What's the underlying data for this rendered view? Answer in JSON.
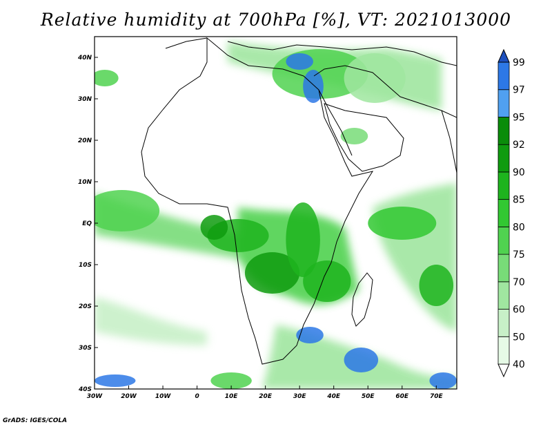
{
  "title": "Relative humidity at 700hPa [%], VT: 2021013000",
  "credit": "GrADS: IGES/COLA",
  "map": {
    "lon_range": [
      -30,
      76
    ],
    "lat_range": [
      -40,
      45
    ],
    "lon_ticks": [
      {
        "value": -30,
        "label": "30W"
      },
      {
        "value": -20,
        "label": "20W"
      },
      {
        "value": -10,
        "label": "10W"
      },
      {
        "value": 0,
        "label": "0"
      },
      {
        "value": 10,
        "label": "10E"
      },
      {
        "value": 20,
        "label": "20E"
      },
      {
        "value": 30,
        "label": "30E"
      },
      {
        "value": 40,
        "label": "40E"
      },
      {
        "value": 50,
        "label": "50E"
      },
      {
        "value": 60,
        "label": "60E"
      },
      {
        "value": 70,
        "label": "70E"
      }
    ],
    "lat_ticks": [
      {
        "value": 40,
        "label": "40N"
      },
      {
        "value": 30,
        "label": "30N"
      },
      {
        "value": 20,
        "label": "20N"
      },
      {
        "value": 10,
        "label": "10N"
      },
      {
        "value": 0,
        "label": "EQ"
      },
      {
        "value": -10,
        "label": "10S"
      },
      {
        "value": -20,
        "label": "20S"
      },
      {
        "value": -30,
        "label": "30S"
      },
      {
        "value": -40,
        "label": "40S"
      }
    ]
  },
  "colorbar": {
    "levels": [
      40,
      50,
      60,
      70,
      75,
      80,
      85,
      90,
      92,
      95,
      97,
      99
    ],
    "colors": [
      "#ffffff",
      "#e6fae6",
      "#c8f0c8",
      "#a0e6a0",
      "#78dc78",
      "#50d250",
      "#32c832",
      "#1eb41e",
      "#0f9b0f",
      "#0a8c0a",
      "#50a0f0",
      "#2d78e6",
      "#1e50be"
    ]
  },
  "humidity_patches": [
    {
      "lon": 36,
      "lat": 36,
      "rx": 14,
      "ry": 6,
      "level": 75
    },
    {
      "lon": 34,
      "lat": 33,
      "rx": 3,
      "ry": 4,
      "level": 97
    },
    {
      "lon": 30,
      "lat": 39,
      "rx": 4,
      "ry": 2,
      "level": 97
    },
    {
      "lon": 52,
      "lat": 35,
      "rx": 9,
      "ry": 6,
      "level": 60
    },
    {
      "lon": -27,
      "lat": 35,
      "rx": 4,
      "ry": 2,
      "level": 75
    },
    {
      "lon": 46,
      "lat": 21,
      "rx": 4,
      "ry": 2,
      "level": 70
    },
    {
      "lon": -22,
      "lat": 3,
      "rx": 11,
      "ry": 5,
      "level": 75
    },
    {
      "lon": 12,
      "lat": -3,
      "rx": 9,
      "ry": 4,
      "level": 85
    },
    {
      "lon": 5,
      "lat": -1,
      "rx": 4,
      "ry": 3,
      "level": 90
    },
    {
      "lon": 22,
      "lat": -12,
      "rx": 8,
      "ry": 5,
      "level": 90
    },
    {
      "lon": 31,
      "lat": -4,
      "rx": 5,
      "ry": 9,
      "level": 85
    },
    {
      "lon": 38,
      "lat": -14,
      "rx": 7,
      "ry": 5,
      "level": 85
    },
    {
      "lon": 33,
      "lat": -27,
      "rx": 4,
      "ry": 2,
      "level": 97
    },
    {
      "lon": 48,
      "lat": -33,
      "rx": 5,
      "ry": 3,
      "level": 97
    },
    {
      "lon": 60,
      "lat": 0,
      "rx": 10,
      "ry": 4,
      "level": 80
    },
    {
      "lon": 70,
      "lat": -15,
      "rx": 5,
      "ry": 5,
      "level": 85
    },
    {
      "lon": -24,
      "lat": -38,
      "rx": 6,
      "ry": 1.5,
      "level": 97
    },
    {
      "lon": 72,
      "lat": -38,
      "rx": 4,
      "ry": 2,
      "level": 97
    },
    {
      "lon": 10,
      "lat": -38,
      "rx": 6,
      "ry": 2,
      "level": 75
    }
  ]
}
